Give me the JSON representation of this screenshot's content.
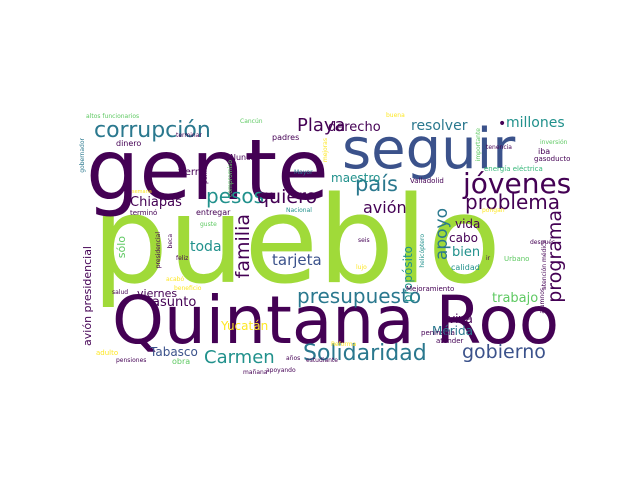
{
  "palette": {
    "dark_purple": "#440154",
    "indigo": "#3b528b",
    "teal": "#21918c",
    "green": "#5ec962",
    "lime": "#a0da39",
    "yellow": "#fde725",
    "sea": "#2a788e",
    "mint": "#35b779",
    "background": "#ffffff"
  },
  "cloud": {
    "pueblo": "pueblo",
    "gente": "gente",
    "seguir": "seguir",
    "quintana_roo": "Quintana Roo",
    "corrupcion": "corrupción",
    "playa": "Playa",
    "derecho": "derecho",
    "resolver": "resolver",
    "millones": "millones",
    "jovenes": "jóvenes",
    "pais": "país",
    "pesos": "pesos",
    "quiero": "quiero",
    "problema": "problema",
    "avion": "avión",
    "apoyo": "apoyo",
    "familia": "familia",
    "programa": "programa",
    "chiapas": "Chiapas",
    "tierra": "tierra",
    "maestro": "maestro",
    "solidaridad": "Solidaridad",
    "presupuesto": "presupuesto",
    "carmen": "Carmen",
    "gobierno": "gobierno",
    "tarjeta": "tarjeta",
    "toda": "toda",
    "vida": "vida",
    "cabo": "cabo",
    "bien": "bien",
    "proposito": "propósito",
    "asunto": "asunto",
    "viernes": "viernes",
    "yucatan": "Yucatán",
    "tabasco": "Tabasco",
    "trabajo": "trabajo",
    "viva": "viva",
    "merida": "Mérida",
    "avion_presidencial": "avión presidencial",
    "solo": "sólo",
    "nunca": "Nunca",
    "padres": "padres",
    "dinero": "dinero",
    "altos_funcionarios": "altos funcionarios",
    "terminar": "terminar",
    "cancun": "Cancún",
    "buena": "buena",
    "importante": "importante",
    "inversion": "inversión",
    "iba": "iba",
    "gasoducto": "gasoducto",
    "energia_electrica": "energía eléctrica",
    "tenencia": "tenencia",
    "valladolid": "Valladolid",
    "mayor": "Mayor",
    "mejoras": "mejoras",
    "compromiso": "compromiso",
    "permitir": "permitir",
    "gobernador": "gobernador",
    "termino": "terminó",
    "semana": "semana",
    "entregar": "entregar",
    "nacional": "Nacional",
    "pongan": "pongan",
    "guste": "guste",
    "seis": "seis",
    "beca": "beca",
    "presidencial": "presidencial",
    "feliz": "feliz",
    "helicoptero": "helicóptero",
    "ir": "ir",
    "despues": "después",
    "urbano": "Urbano",
    "atencion_medica": "atención médica",
    "lujo": "lujo",
    "calidad": "calidad",
    "salud": "salud",
    "beneficio": "beneficio",
    "mejoramiento": "Mejoramiento",
    "alumnos": "alumnos",
    "peninsula": "península",
    "atender": "atender",
    "reforma": "Reforma",
    "estudiante": "estudiante",
    "manana": "mañana",
    "apoyando": "apoyando",
    "anos": "años",
    "adulto": "adulto",
    "pensiones": "pensiones",
    "obra": "obra",
    "acabo": "acabó"
  }
}
